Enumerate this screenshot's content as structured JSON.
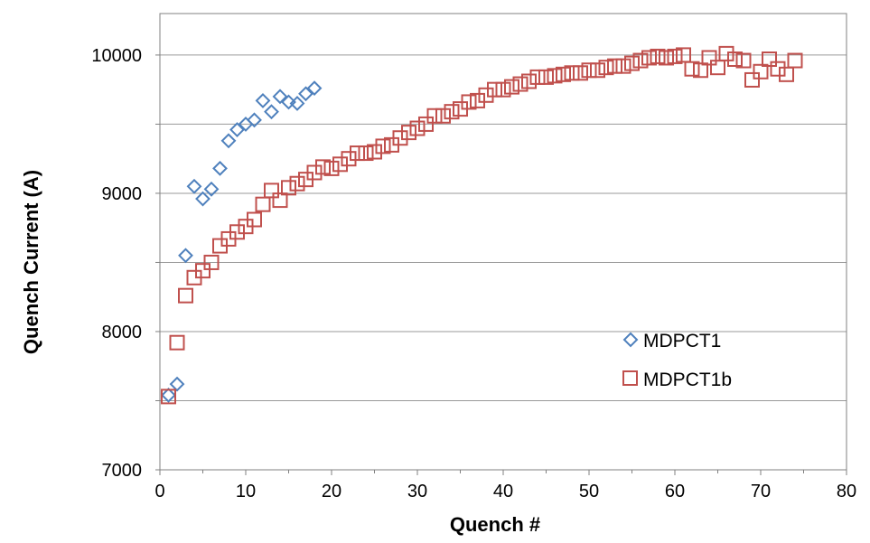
{
  "chart_data": {
    "type": "scatter",
    "title": "",
    "xlabel": "Quench #",
    "ylabel": "Quench Current (A)",
    "xlim": [
      0,
      80
    ],
    "ylim": [
      7000,
      10300
    ],
    "xticks": [
      0,
      10,
      20,
      30,
      40,
      50,
      60,
      70,
      80
    ],
    "yticks": [
      7000,
      8000,
      9000,
      10000
    ],
    "grid": "horizontal",
    "legend_position": "right",
    "series": [
      {
        "name": "MDPCT1",
        "marker": "diamond",
        "color": "#4F81BD",
        "x": [
          1,
          2,
          3,
          4,
          5,
          6,
          7,
          8,
          9,
          10,
          11,
          12,
          13,
          14,
          15,
          16,
          17,
          18
        ],
        "y": [
          7540,
          7620,
          8550,
          9050,
          8960,
          9030,
          9180,
          9380,
          9460,
          9500,
          9530,
          9670,
          9590,
          9700,
          9660,
          9650,
          9720,
          9760
        ]
      },
      {
        "name": "MDPCT1b",
        "marker": "square",
        "color": "#C0504D",
        "x": [
          1,
          2,
          3,
          4,
          5,
          6,
          7,
          8,
          9,
          10,
          11,
          12,
          13,
          14,
          15,
          16,
          17,
          18,
          19,
          20,
          21,
          22,
          23,
          24,
          25,
          26,
          27,
          28,
          29,
          30,
          31,
          32,
          33,
          34,
          35,
          36,
          37,
          38,
          39,
          40,
          41,
          42,
          43,
          44,
          45,
          46,
          47,
          48,
          49,
          50,
          51,
          52,
          53,
          54,
          55,
          56,
          57,
          58,
          59,
          60,
          61,
          62,
          63,
          64,
          65,
          66,
          67,
          68,
          69,
          70,
          71,
          72,
          73,
          74
        ],
        "y": [
          7530,
          7920,
          8260,
          8390,
          8440,
          8500,
          8620,
          8670,
          8720,
          8760,
          8810,
          8920,
          9020,
          8950,
          9040,
          9070,
          9100,
          9150,
          9190,
          9180,
          9210,
          9250,
          9290,
          9290,
          9300,
          9340,
          9350,
          9400,
          9440,
          9470,
          9500,
          9560,
          9560,
          9590,
          9610,
          9660,
          9670,
          9710,
          9750,
          9750,
          9770,
          9790,
          9810,
          9840,
          9840,
          9850,
          9860,
          9870,
          9870,
          9890,
          9890,
          9910,
          9920,
          9920,
          9940,
          9960,
          9980,
          9990,
          9980,
          9990,
          10000,
          9900,
          9890,
          9980,
          9910,
          10010,
          9970,
          9960,
          9820,
          9880,
          9970,
          9900,
          9860,
          9960
        ]
      }
    ]
  }
}
